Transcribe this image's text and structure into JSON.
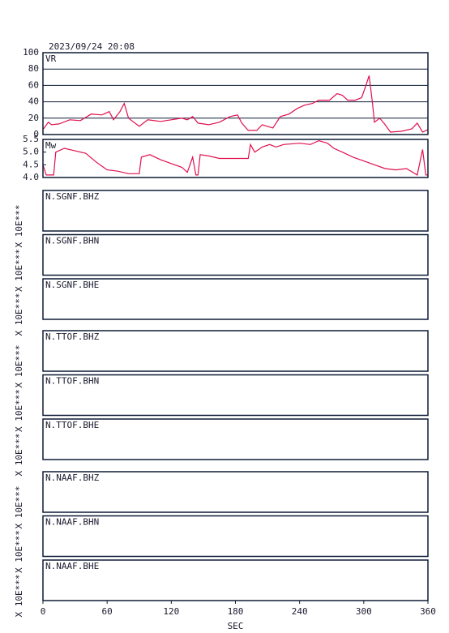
{
  "date": "2023/09/24 20:08",
  "time_axis": {
    "label": "SEC",
    "xlim": [
      0,
      360
    ],
    "xticks": [
      0,
      60,
      120,
      180,
      240,
      300,
      360
    ]
  },
  "chart_data": [
    {
      "type": "line",
      "label": "VR",
      "color": "#e0104f",
      "grid": true,
      "ylim": [
        0,
        100
      ],
      "yticks": [
        0,
        20,
        40,
        60,
        80,
        100
      ],
      "x": [
        0,
        5,
        8,
        15,
        25,
        35,
        45,
        55,
        62,
        66,
        72,
        76,
        80,
        90,
        98,
        110,
        120,
        130,
        135,
        140,
        145,
        155,
        165,
        175,
        182,
        186,
        192,
        200,
        205,
        210,
        215,
        222,
        230,
        238,
        245,
        252,
        258,
        268,
        275,
        280,
        285,
        292,
        298,
        302,
        305,
        308,
        310,
        315,
        320,
        325,
        335,
        345,
        350,
        355,
        360
      ],
      "values": [
        6,
        15,
        12,
        13,
        18,
        17,
        25,
        24,
        28,
        18,
        28,
        38,
        20,
        10,
        18,
        16,
        18,
        20,
        18,
        22,
        14,
        12,
        15,
        22,
        24,
        14,
        5,
        5,
        12,
        10,
        8,
        22,
        25,
        32,
        36,
        38,
        42,
        42,
        50,
        48,
        42,
        42,
        45,
        60,
        72,
        40,
        15,
        20,
        12,
        3,
        4,
        7,
        14,
        3,
        6
      ]
    },
    {
      "type": "line",
      "label": "Mw",
      "color": "#e0104f",
      "grid": false,
      "ylim": [
        4.0,
        5.5
      ],
      "yticks": [
        {
          "value": 4.0,
          "label": "4.0"
        },
        4.5,
        {
          "value": 5.0,
          "label": "5.0"
        },
        5.5
      ],
      "x": [
        0,
        3,
        10,
        12,
        20,
        30,
        40,
        50,
        60,
        70,
        80,
        90,
        92,
        100,
        110,
        120,
        130,
        135,
        140,
        143,
        145,
        147,
        155,
        165,
        180,
        192,
        194,
        198,
        205,
        212,
        218,
        225,
        240,
        250,
        258,
        266,
        272,
        280,
        290,
        300,
        310,
        320,
        330,
        340,
        350,
        355,
        358,
        360
      ],
      "values": [
        4.5,
        4.1,
        4.1,
        5.0,
        5.15,
        5.05,
        4.95,
        4.6,
        4.3,
        4.25,
        4.15,
        4.15,
        4.8,
        4.9,
        4.7,
        4.55,
        4.4,
        4.2,
        4.8,
        4.1,
        4.1,
        4.9,
        4.85,
        4.75,
        4.75,
        4.75,
        5.3,
        5.0,
        5.2,
        5.3,
        5.2,
        5.3,
        5.35,
        5.3,
        5.45,
        5.35,
        5.15,
        5.0,
        4.8,
        4.65,
        4.5,
        4.35,
        4.3,
        4.35,
        4.1,
        5.1,
        4.1,
        4.1
      ]
    }
  ],
  "traces": [
    {
      "label": "N.SGNF.BHZ",
      "ylabel": "X 10E***"
    },
    {
      "label": "N.SGNF.BHN",
      "ylabel": "X 10E***"
    },
    {
      "label": "N.SGNF.BHE",
      "ylabel": "X 10E***"
    },
    {
      "label": "N.TTOF.BHZ",
      "ylabel": "X 10E***"
    },
    {
      "label": "N.TTOF.BHN",
      "ylabel": "X 10E***"
    },
    {
      "label": "N.TTOF.BHE",
      "ylabel": "X 10E***"
    },
    {
      "label": "N.NAAF.BHZ",
      "ylabel": "X 10E***"
    },
    {
      "label": "N.NAAF.BHN",
      "ylabel": "X 10E***"
    },
    {
      "label": "N.NAAF.BHE",
      "ylabel": "X 10E***"
    }
  ]
}
